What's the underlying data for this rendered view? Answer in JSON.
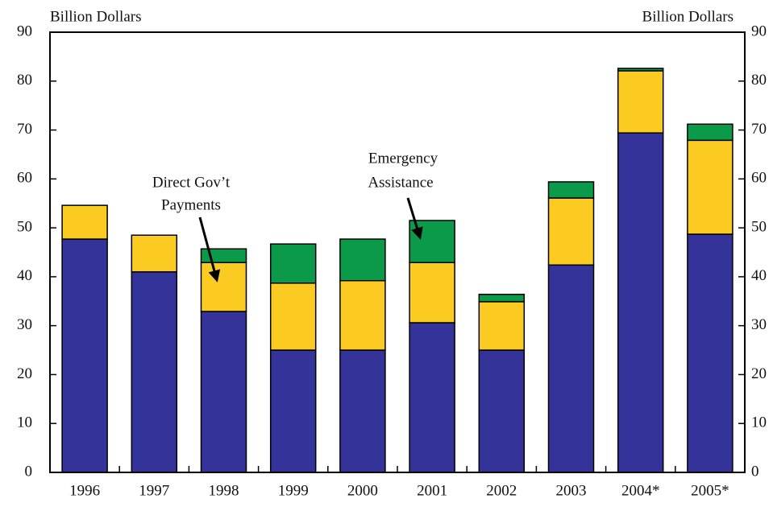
{
  "chart_data": {
    "type": "stacked_bar",
    "y_label": "Billion Dollars",
    "y2_label": "Billion Dollars",
    "categories": [
      "1996",
      "1997",
      "1998",
      "1999",
      "2000",
      "2001",
      "2002",
      "2003",
      "2004*",
      "2005*"
    ],
    "series": [
      {
        "color": "#333399",
        "values": [
          47.7,
          41.0,
          32.9,
          25.0,
          25.0,
          30.6,
          25.0,
          42.4,
          69.4,
          48.7
        ]
      },
      {
        "color": "#fccb21",
        "values": [
          6.9,
          7.5,
          10.0,
          13.7,
          14.2,
          12.3,
          9.9,
          13.7,
          12.7,
          19.2
        ]
      },
      {
        "color": "#0a9a4a",
        "values": [
          0,
          0,
          2.8,
          8.0,
          8.5,
          8.6,
          1.5,
          3.3,
          0.5,
          3.3
        ]
      }
    ],
    "annotations": [
      {
        "lines": [
          "Direct Gov’t",
          "Payments"
        ]
      },
      {
        "lines": [
          "Emergency",
          "Assistance"
        ]
      }
    ],
    "ylim": [
      0,
      90
    ],
    "yticks": [
      0,
      10,
      20,
      30,
      40,
      50,
      60,
      70,
      80,
      90
    ],
    "y2lim": [
      0,
      90
    ],
    "y2ticks": [
      0,
      10,
      20,
      30,
      40,
      50,
      60,
      70,
      80,
      90
    ]
  }
}
